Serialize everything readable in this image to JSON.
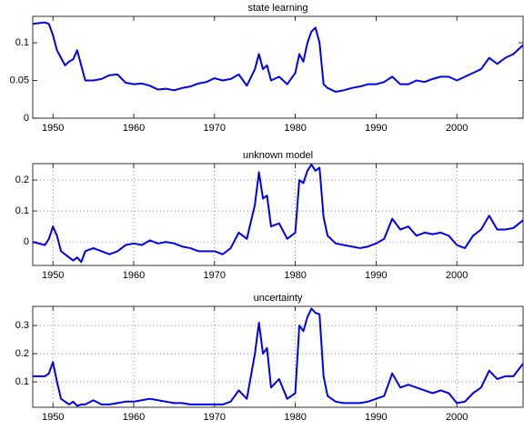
{
  "chart_data": [
    {
      "type": "line",
      "title": "state learning",
      "color": "#0000ee",
      "grid": false,
      "x": [
        1947.5,
        1949,
        1949.5,
        1950,
        1950.5,
        1951,
        1951.5,
        1952,
        1952.5,
        1953,
        1953.5,
        1954,
        1955,
        1956,
        1957,
        1958,
        1959,
        1960,
        1961,
        1962,
        1963,
        1964,
        1965,
        1966,
        1967,
        1968,
        1969,
        1970,
        1971,
        1972,
        1973,
        1974,
        1975,
        1975.5,
        1976,
        1976.5,
        1977,
        1978,
        1979,
        1980,
        1980.5,
        1981,
        1981.5,
        1982,
        1982.5,
        1983,
        1983.5,
        1984,
        1985,
        1986,
        1987,
        1988,
        1989,
        1990,
        1991,
        1992,
        1993,
        1994,
        1995,
        1996,
        1997,
        1998,
        1999,
        2000,
        2001,
        2002,
        2003,
        2004,
        2005,
        2006,
        2007,
        2008.2
      ],
      "values": [
        0.125,
        0.127,
        0.125,
        0.11,
        0.09,
        0.08,
        0.07,
        0.075,
        0.078,
        0.09,
        0.07,
        0.05,
        0.05,
        0.052,
        0.057,
        0.058,
        0.047,
        0.045,
        0.046,
        0.043,
        0.038,
        0.039,
        0.037,
        0.04,
        0.042,
        0.046,
        0.048,
        0.053,
        0.05,
        0.052,
        0.058,
        0.043,
        0.065,
        0.085,
        0.065,
        0.07,
        0.05,
        0.055,
        0.045,
        0.06,
        0.085,
        0.075,
        0.1,
        0.115,
        0.12,
        0.1,
        0.045,
        0.04,
        0.035,
        0.037,
        0.04,
        0.042,
        0.045,
        0.045,
        0.048,
        0.055,
        0.045,
        0.045,
        0.05,
        0.048,
        0.052,
        0.055,
        0.055,
        0.05,
        0.055,
        0.06,
        0.065,
        0.08,
        0.072,
        0.08,
        0.085,
        0.097
      ],
      "xlim": [
        1947.5,
        2008.2
      ],
      "xticks": [
        1950,
        1960,
        1970,
        1980,
        1990,
        2000
      ],
      "ylim": [
        0,
        0.135
      ],
      "yticks": [
        0,
        0.05,
        0.1
      ]
    },
    {
      "type": "line",
      "title": "unknown model",
      "color": "#0000ee",
      "grid": true,
      "x": [
        1947.5,
        1949,
        1949.5,
        1950,
        1950.5,
        1951,
        1951.5,
        1952,
        1952.5,
        1953,
        1953.5,
        1954,
        1955,
        1956,
        1957,
        1958,
        1959,
        1960,
        1961,
        1962,
        1963,
        1964,
        1965,
        1966,
        1967,
        1968,
        1969,
        1970,
        1971,
        1972,
        1973,
        1974,
        1975,
        1975.5,
        1976,
        1976.5,
        1977,
        1978,
        1979,
        1980,
        1980.5,
        1981,
        1981.5,
        1982,
        1982.5,
        1983,
        1983.5,
        1984,
        1985,
        1986,
        1987,
        1988,
        1989,
        1990,
        1991,
        1992,
        1993,
        1994,
        1995,
        1996,
        1997,
        1998,
        1999,
        2000,
        2001,
        2002,
        2003,
        2004,
        2005,
        2006,
        2007,
        2008.2
      ],
      "values": [
        0,
        -0.01,
        0.01,
        0.05,
        0.02,
        -0.03,
        -0.04,
        -0.05,
        -0.06,
        -0.05,
        -0.065,
        -0.03,
        -0.02,
        -0.03,
        -0.04,
        -0.03,
        -0.01,
        -0.005,
        -0.01,
        0.005,
        -0.005,
        0,
        -0.005,
        -0.015,
        -0.02,
        -0.03,
        -0.03,
        -0.03,
        -0.04,
        -0.02,
        0.03,
        0.01,
        0.12,
        0.225,
        0.14,
        0.15,
        0.05,
        0.06,
        0.01,
        0.03,
        0.2,
        0.19,
        0.23,
        0.25,
        0.23,
        0.24,
        0.08,
        0.02,
        -0.005,
        -0.01,
        -0.015,
        -0.02,
        -0.015,
        -0.005,
        0.01,
        0.075,
        0.04,
        0.05,
        0.02,
        0.03,
        0.025,
        0.03,
        0.02,
        -0.01,
        -0.02,
        0.02,
        0.04,
        0.085,
        0.04,
        0.04,
        0.045,
        0.07
      ],
      "xlim": [
        1947.5,
        2008.2
      ],
      "xticks": [
        1950,
        1960,
        1970,
        1980,
        1990,
        2000
      ],
      "ylim": [
        -0.076,
        0.253
      ],
      "yticks": [
        0,
        0.1,
        0.2
      ]
    },
    {
      "type": "line",
      "title": "uncertainty",
      "color": "#0000ee",
      "grid": true,
      "x": [
        1947.5,
        1949,
        1949.5,
        1950,
        1950.5,
        1951,
        1951.5,
        1952,
        1952.5,
        1953,
        1953.5,
        1954,
        1955,
        1956,
        1957,
        1958,
        1959,
        1960,
        1961,
        1962,
        1963,
        1964,
        1965,
        1966,
        1967,
        1968,
        1969,
        1970,
        1971,
        1972,
        1973,
        1974,
        1975,
        1975.5,
        1976,
        1976.5,
        1977,
        1978,
        1979,
        1980,
        1980.5,
        1981,
        1981.5,
        1982,
        1982.5,
        1983,
        1983.5,
        1984,
        1985,
        1986,
        1987,
        1988,
        1989,
        1990,
        1991,
        1992,
        1993,
        1994,
        1995,
        1996,
        1997,
        1998,
        1999,
        2000,
        2001,
        2002,
        2003,
        2004,
        2005,
        2006,
        2007,
        2008.2
      ],
      "values": [
        0.12,
        0.12,
        0.13,
        0.17,
        0.1,
        0.04,
        0.03,
        0.02,
        0.03,
        0.015,
        0.02,
        0.02,
        0.035,
        0.02,
        0.02,
        0.025,
        0.03,
        0.03,
        0.035,
        0.04,
        0.035,
        0.03,
        0.025,
        0.025,
        0.02,
        0.02,
        0.02,
        0.02,
        0.02,
        0.03,
        0.07,
        0.04,
        0.2,
        0.31,
        0.2,
        0.22,
        0.08,
        0.11,
        0.04,
        0.06,
        0.3,
        0.28,
        0.33,
        0.36,
        0.345,
        0.34,
        0.12,
        0.05,
        0.03,
        0.025,
        0.025,
        0.025,
        0.03,
        0.04,
        0.05,
        0.13,
        0.08,
        0.09,
        0.08,
        0.07,
        0.06,
        0.07,
        0.06,
        0.025,
        0.03,
        0.06,
        0.08,
        0.14,
        0.11,
        0.12,
        0.12,
        0.165
      ],
      "xlim": [
        1947.5,
        2008.2
      ],
      "xticks": [
        1950,
        1960,
        1970,
        1980,
        1990,
        2000
      ],
      "ylim": [
        0.01,
        0.368
      ],
      "yticks": [
        0.1,
        0.2,
        0.3
      ]
    }
  ]
}
